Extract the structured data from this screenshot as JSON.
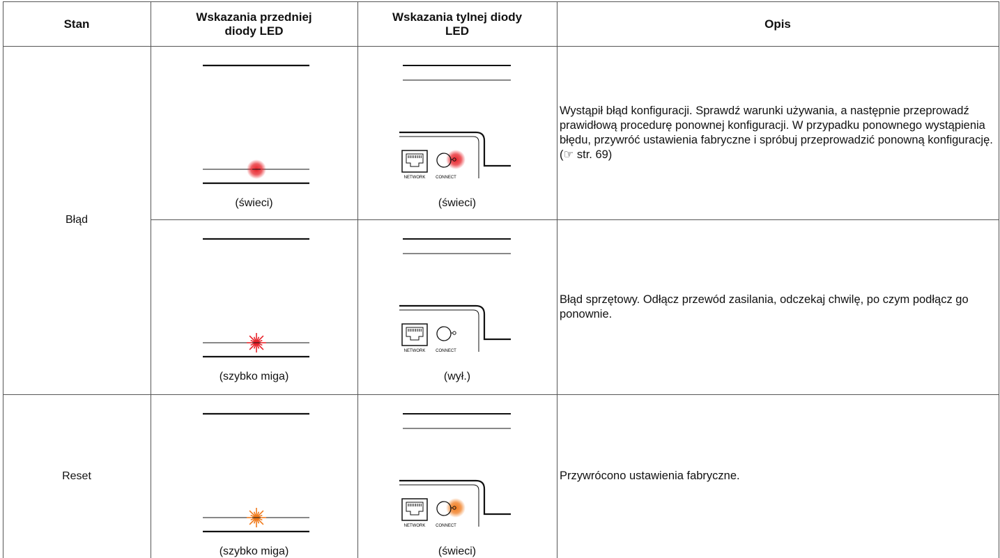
{
  "table": {
    "header": [
      "Stan",
      "Wskazania przedniej diody LED",
      "Wskazania tylnej diody LED",
      "Opis"
    ],
    "groups": [
      {
        "state": "Błąd",
        "rows": [
          {
            "front": "(świeci)",
            "rear": "(świeci)",
            "description": "Wystąpił błąd konfiguracji. Sprawdź warunki używania, a następnie przeprowadź prawidłową procedurę ponownej konfiguracji. W przypadku ponownego wystąpienia błędu, przywróć ustawienia fabryczne i spróbuj przeprowadzić ponowną konfigurację.",
            "reference": "(☞ str. 69)"
          },
          {
            "front": "(szybko miga)",
            "rear": "(wył.)",
            "description": "Błąd sprzętowy. Odłącz przewód zasilania, odczekaj chwilę, po czym podłącz go ponownie."
          }
        ]
      },
      {
        "state": "Reset",
        "rows": [
          {
            "front": "(szybko miga)",
            "rear": "(świeci)",
            "description": "Przywrócono ustawienia fabryczne."
          }
        ]
      }
    ],
    "illustration_labels": {
      "network": "NETWORK",
      "connect": "CONNECT"
    }
  }
}
